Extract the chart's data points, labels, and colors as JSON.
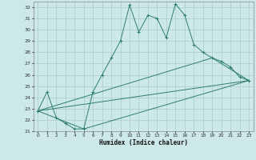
{
  "title": "",
  "xlabel": "Humidex (Indice chaleur)",
  "ylabel": "",
  "bg_color": "#cce8e8",
  "grid_color": "#aacccc",
  "line_color": "#2e7d72",
  "xlim": [
    -0.5,
    23.5
  ],
  "ylim": [
    21,
    32.5
  ],
  "xticks": [
    0,
    1,
    2,
    3,
    4,
    5,
    6,
    7,
    8,
    9,
    10,
    11,
    12,
    13,
    14,
    15,
    16,
    17,
    18,
    19,
    20,
    21,
    22,
    23
  ],
  "yticks": [
    21,
    22,
    23,
    24,
    25,
    26,
    27,
    28,
    29,
    30,
    31,
    32
  ],
  "main_x": [
    0,
    1,
    2,
    3,
    4,
    5,
    6,
    7,
    8,
    9,
    10,
    11,
    12,
    13,
    14,
    15,
    16,
    17,
    18,
    19,
    20,
    21,
    22,
    23
  ],
  "main_y": [
    22.8,
    24.5,
    22.2,
    21.7,
    21.2,
    21.2,
    24.5,
    26.0,
    27.5,
    29.0,
    32.2,
    29.8,
    31.3,
    31.0,
    29.3,
    32.3,
    31.3,
    28.7,
    28.0,
    27.5,
    27.2,
    26.7,
    25.8,
    25.5
  ],
  "line2_x": [
    0,
    5,
    23
  ],
  "line2_y": [
    22.8,
    21.2,
    25.5
  ],
  "line3_x": [
    0,
    19,
    23
  ],
  "line3_y": [
    22.8,
    27.5,
    25.5
  ],
  "line4_x": [
    0,
    23
  ],
  "line4_y": [
    22.8,
    25.5
  ]
}
